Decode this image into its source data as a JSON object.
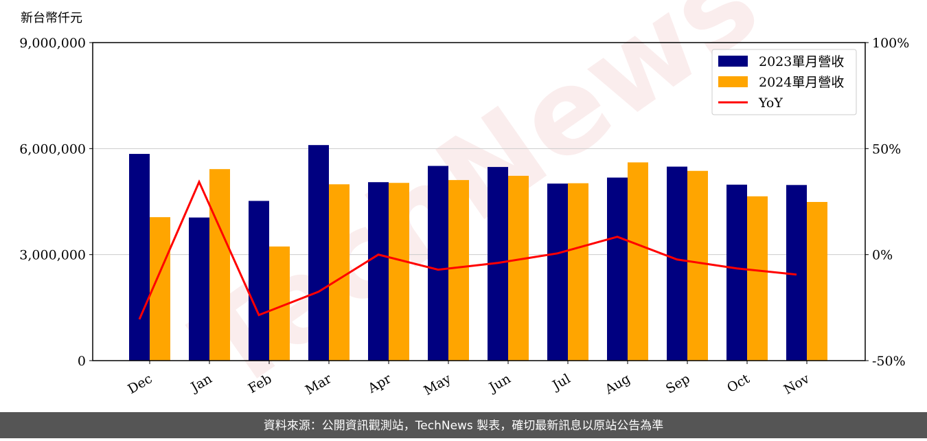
{
  "chart_data": {
    "type": "bar_line",
    "y_axis_label": "新台幣仟元",
    "watermark": "TechNews",
    "source_note": "資料來源：公開資訊觀測站，TechNews 製表，確切最新訊息以原站公告為準",
    "categories": [
      "Dec",
      "Jan",
      "Feb",
      "Mar",
      "Apr",
      "May",
      "Jun",
      "Jul",
      "Aug",
      "Sep",
      "Oct",
      "Nov"
    ],
    "series": [
      {
        "name": "2023單月營收",
        "color": "#000080",
        "type": "bar",
        "values": [
          5850000,
          4050000,
          4520000,
          6100000,
          5050000,
          5510000,
          5480000,
          5010000,
          5180000,
          5490000,
          4980000,
          4970000
        ]
      },
      {
        "name": "2024單月營收",
        "color": "#ffa500",
        "type": "bar",
        "values": [
          4060000,
          5420000,
          3230000,
          4990000,
          5030000,
          5110000,
          5230000,
          5020000,
          5610000,
          5370000,
          4650000,
          4490000
        ]
      },
      {
        "name": "YoY",
        "color": "#ff0000",
        "type": "line",
        "axis": "y2",
        "values": [
          -30.5,
          34.3,
          -28.5,
          -17.5,
          0,
          -7.1,
          -3.9,
          0.6,
          8.4,
          -2.3,
          -6.5,
          -9.4
        ]
      }
    ],
    "ylim": [
      0,
      9000000
    ],
    "yticks": [
      0,
      {
        "value": 3000000,
        "label": "3,000,000"
      },
      {
        "value": 6000000,
        "label": "6,000,000"
      },
      {
        "value": 9000000,
        "label": "9,000,000"
      }
    ],
    "y2lim": [
      -50,
      100
    ],
    "y2ticks": [
      {
        "value": -50,
        "label": "-50%"
      },
      {
        "value": 0,
        "label": "0%"
      },
      {
        "value": 50,
        "label": "50%"
      },
      {
        "value": 100,
        "label": "100%"
      }
    ],
    "grid": true,
    "legend": "upper right"
  }
}
